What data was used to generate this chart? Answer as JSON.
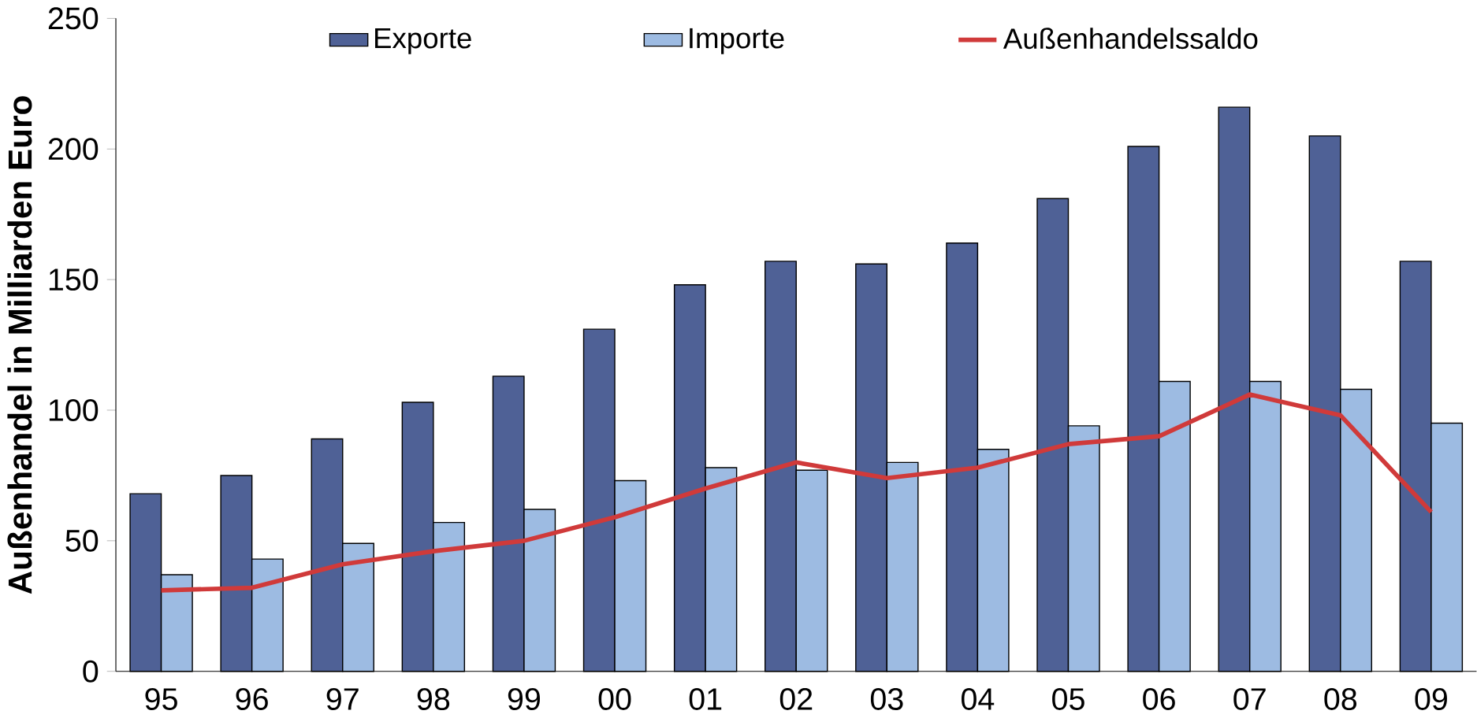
{
  "chart_data": {
    "type": "bar",
    "ylabel": "Außenhandel in Milliarden Euro",
    "categories": [
      "95",
      "96",
      "97",
      "98",
      "99",
      "00",
      "01",
      "02",
      "03",
      "04",
      "05",
      "06",
      "07",
      "08",
      "09"
    ],
    "series": [
      {
        "name": "Exporte",
        "color": "#4f6196",
        "values": [
          68,
          75,
          89,
          103,
          113,
          131,
          148,
          157,
          156,
          164,
          181,
          201,
          216,
          205,
          157
        ]
      },
      {
        "name": "Importe",
        "color": "#9dbbe2",
        "values": [
          37,
          43,
          49,
          57,
          62,
          73,
          78,
          77,
          80,
          85,
          94,
          111,
          111,
          108,
          95
        ]
      },
      {
        "name": "Außenhandelssaldo",
        "type": "line",
        "color": "#d03a3a",
        "values": [
          31,
          32,
          41,
          46,
          50,
          59,
          70,
          80,
          74,
          78,
          87,
          90,
          106,
          98,
          61
        ]
      }
    ],
    "ylim": [
      0,
      250
    ],
    "yticks": [
      0,
      50,
      100,
      150,
      200,
      250
    ],
    "legend": "top"
  }
}
